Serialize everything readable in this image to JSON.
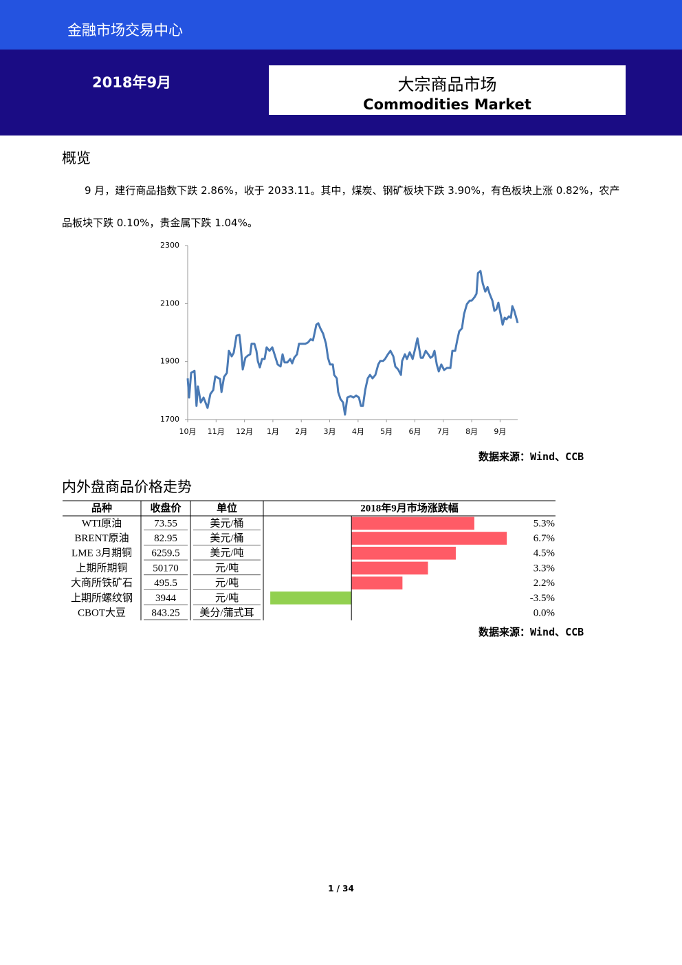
{
  "header": {
    "org": "金融市场交易中心",
    "date": "2018年9月",
    "title_cn": "大宗商品市场",
    "title_en": "Commodities Market"
  },
  "overview": {
    "heading": "概览",
    "text": "9 月，建行商品指数下跌 2.86%，收于 2033.11。其中，煤炭、钢矿板块下跌 3.90%，有色板块上涨 0.82%，农产品板块下跌 0.10%，贵金属下跌 1.04%。",
    "source": "数据来源：Wind、CCB"
  },
  "chart_data": [
    {
      "type": "line",
      "color": "#4a7ab5",
      "xlim": [
        0,
        11.62
      ],
      "xticks": [
        {
          "value": 0,
          "label": "10月"
        },
        {
          "value": 1,
          "label": "11月"
        },
        {
          "value": 2,
          "label": "12月"
        },
        {
          "value": 3,
          "label": "1月"
        },
        {
          "value": 4,
          "label": "2月"
        },
        {
          "value": 5,
          "label": "3月"
        },
        {
          "value": 6,
          "label": "4月"
        },
        {
          "value": 7,
          "label": "5月"
        },
        {
          "value": 8,
          "label": "6月"
        },
        {
          "value": 9,
          "label": "7月"
        },
        {
          "value": 10,
          "label": "8月"
        },
        {
          "value": 11,
          "label": "9月"
        }
      ],
      "ylim": [
        1700,
        2300
      ],
      "yticks": [
        1700,
        1900,
        2100,
        2300
      ],
      "x": [
        0,
        0.05,
        0.12,
        0.24,
        0.31,
        0.36,
        0.46,
        0.56,
        0.7,
        0.8,
        0.9,
        0.97,
        1.14,
        1.19,
        1.28,
        1.38,
        1.45,
        1.55,
        1.62,
        1.72,
        1.82,
        1.86,
        1.94,
        2.03,
        2.11,
        2.2,
        2.25,
        2.35,
        2.42,
        2.47,
        2.54,
        2.62,
        2.71,
        2.78,
        2.88,
        2.98,
        3.08,
        3.17,
        3.27,
        3.34,
        3.41,
        3.51,
        3.61,
        3.68,
        3.75,
        3.85,
        3.92,
        4.04,
        4.14,
        4.24,
        4.33,
        4.41,
        4.48,
        4.53,
        4.6,
        4.67,
        4.77,
        4.87,
        4.94,
        5.01,
        5.11,
        5.16,
        5.25,
        5.3,
        5.38,
        5.47,
        5.54,
        5.62,
        5.74,
        5.84,
        5.93,
        6.03,
        6.1,
        6.17,
        6.25,
        6.34,
        6.42,
        6.51,
        6.61,
        6.71,
        6.78,
        6.88,
        6.95,
        7.05,
        7.14,
        7.24,
        7.31,
        7.41,
        7.51,
        7.55,
        7.65,
        7.72,
        7.82,
        7.92,
        7.99,
        8.09,
        8.21,
        8.28,
        8.38,
        8.47,
        8.55,
        8.62,
        8.69,
        8.77,
        8.84,
        8.93,
        9.03,
        9.13,
        9.25,
        9.32,
        9.42,
        9.49,
        9.56,
        9.66,
        9.73,
        9.83,
        9.93,
        10.0,
        10.1,
        10.17,
        10.22,
        10.31,
        10.39,
        10.48,
        10.56,
        10.63,
        10.73,
        10.8,
        10.87,
        10.94,
        11.02,
        11.09,
        11.16,
        11.23,
        11.31,
        11.38,
        11.43,
        11.5,
        11.57,
        11.62
      ],
      "values": [
        1842,
        1776,
        1861,
        1868,
        1747,
        1814,
        1759,
        1776,
        1740,
        1788,
        1802,
        1849,
        1840,
        1795,
        1847,
        1861,
        1937,
        1918,
        1930,
        1989,
        1992,
        1961,
        1873,
        1913,
        1920,
        1925,
        1961,
        1961,
        1937,
        1902,
        1880,
        1909,
        1909,
        1949,
        1937,
        1949,
        1918,
        1890,
        1883,
        1925,
        1897,
        1897,
        1909,
        1894,
        1913,
        1925,
        1961,
        1961,
        1961,
        1966,
        1977,
        1973,
        2004,
        2027,
        2032,
        2015,
        1996,
        1961,
        1913,
        1890,
        1890,
        1854,
        1842,
        1795,
        1771,
        1759,
        1717,
        1776,
        1781,
        1776,
        1783,
        1776,
        1747,
        1747,
        1802,
        1842,
        1854,
        1842,
        1854,
        1890,
        1902,
        1902,
        1909,
        1925,
        1937,
        1918,
        1883,
        1873,
        1854,
        1902,
        1925,
        1909,
        1932,
        1909,
        1937,
        1980,
        1913,
        1913,
        1937,
        1925,
        1913,
        1918,
        1937,
        1890,
        1866,
        1890,
        1871,
        1878,
        1878,
        1937,
        1937,
        1973,
        2004,
        2015,
        2063,
        2098,
        2110,
        2110,
        2122,
        2134,
        2205,
        2212,
        2169,
        2141,
        2157,
        2134,
        2110,
        2075,
        2080,
        2103,
        2063,
        2027,
        2051,
        2046,
        2056,
        2051,
        2091,
        2075,
        2051,
        2033
      ]
    },
    {
      "type": "bar",
      "orientation": "horizontal",
      "title": "2018年9月市场涨跌幅",
      "xlim": [
        -3.8,
        8.8
      ],
      "color": "#ff5b66",
      "negative_color": "#92d050",
      "values": [
        5.3,
        6.7,
        4.5,
        3.3,
        2.2,
        -3.5,
        0.0
      ],
      "value_labels": [
        "5.3%",
        "6.7%",
        "4.5%",
        "3.3%",
        "2.2%",
        "-3.5%",
        "0.0%"
      ]
    }
  ],
  "prices": {
    "heading": "内外盘商品价格走势",
    "table": {
      "columns": [
        "品种",
        "收盘价",
        "单位"
      ],
      "rows": [
        [
          "WTI原油",
          "73.55",
          "美元/桶"
        ],
        [
          "BRENT原油",
          "82.95",
          "美元/桶"
        ],
        [
          "LME 3月期铜",
          "6259.5",
          "美元/吨"
        ],
        [
          "上期所期铜",
          "50170",
          "元/吨"
        ],
        [
          "大商所铁矿石",
          "495.5",
          "元/吨"
        ],
        [
          "上期所螺纹钢",
          "3944",
          "元/吨"
        ],
        [
          "CBOT大豆",
          "843.25",
          "美分/蒲式耳"
        ]
      ]
    },
    "source": "数据来源：Wind、CCB"
  },
  "footer": {
    "page": "1 / 34"
  }
}
